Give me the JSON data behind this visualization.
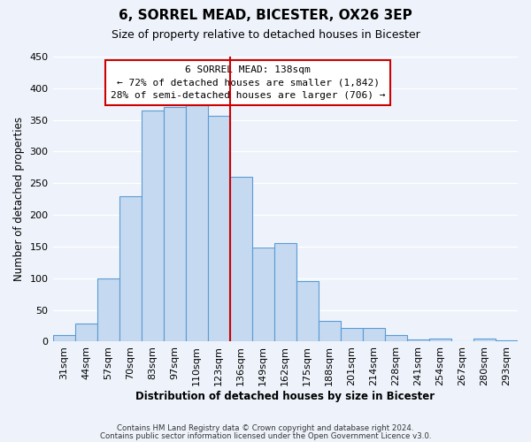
{
  "title": "6, SORREL MEAD, BICESTER, OX26 3EP",
  "subtitle": "Size of property relative to detached houses in Bicester",
  "xlabel": "Distribution of detached houses by size in Bicester",
  "ylabel": "Number of detached properties",
  "categories": [
    "31sqm",
    "44sqm",
    "57sqm",
    "70sqm",
    "83sqm",
    "97sqm",
    "110sqm",
    "123sqm",
    "136sqm",
    "149sqm",
    "162sqm",
    "175sqm",
    "188sqm",
    "201sqm",
    "214sqm",
    "228sqm",
    "241sqm",
    "254sqm",
    "267sqm",
    "280sqm",
    "293sqm"
  ],
  "values": [
    10,
    28,
    100,
    230,
    365,
    370,
    373,
    357,
    260,
    148,
    155,
    95,
    33,
    22,
    22,
    10,
    4,
    5,
    0,
    5,
    2
  ],
  "bar_color": "#c5d9f0",
  "bar_edge_color": "#5b9bd5",
  "vline_pos": 8.5,
  "vline_color": "#cc0000",
  "annotation_title": "6 SORREL MEAD: 138sqm",
  "annotation_line1": "← 72% of detached houses are smaller (1,842)",
  "annotation_line2": "28% of semi-detached houses are larger (706) →",
  "annotation_box_facecolor": "#ffffff",
  "annotation_box_edgecolor": "#cc0000",
  "footer1": "Contains HM Land Registry data © Crown copyright and database right 2024.",
  "footer2": "Contains public sector information licensed under the Open Government Licence v3.0.",
  "ylim": [
    0,
    450
  ],
  "yticks": [
    0,
    50,
    100,
    150,
    200,
    250,
    300,
    350,
    400,
    450
  ],
  "background_color": "#eef3fb"
}
